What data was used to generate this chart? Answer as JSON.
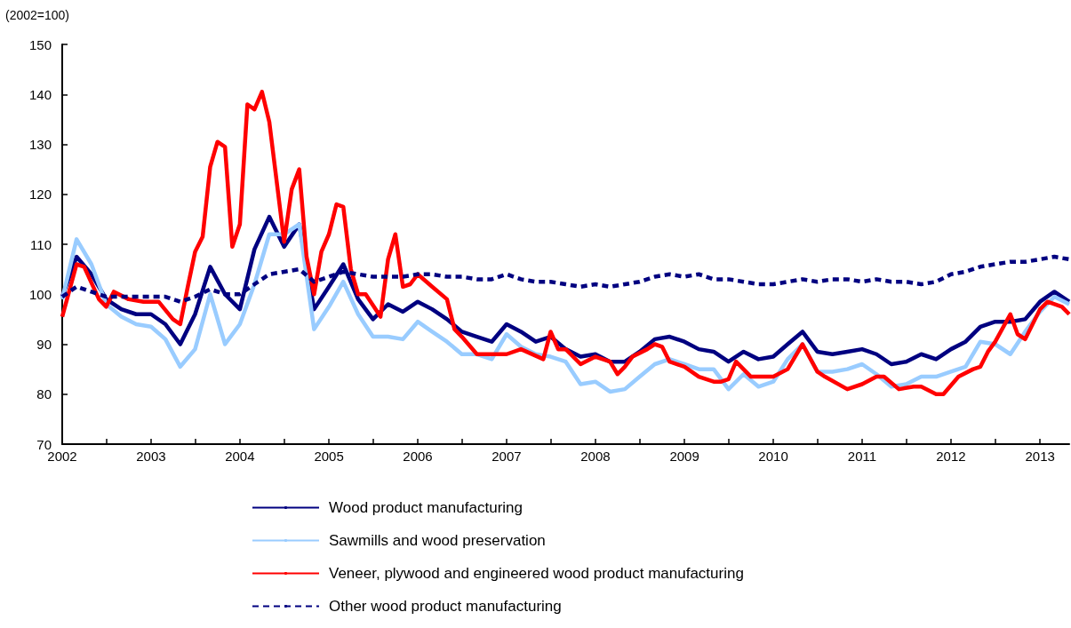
{
  "chart_data": {
    "type": "line",
    "ylabel": "(2002=100)",
    "x": [
      "2002-01",
      "2002-03",
      "2002-05",
      "2002-07",
      "2002-09",
      "2002-11",
      "2003-01",
      "2003-03",
      "2003-05",
      "2003-07",
      "2003-09",
      "2003-11",
      "2004-01",
      "2004-03",
      "2004-05",
      "2004-07",
      "2004-09",
      "2004-11",
      "2005-01",
      "2005-03",
      "2005-05",
      "2005-07",
      "2005-09",
      "2005-11",
      "2006-01",
      "2006-03",
      "2006-05",
      "2006-07",
      "2006-09",
      "2006-11",
      "2007-01",
      "2007-03",
      "2007-05",
      "2007-07",
      "2007-09",
      "2007-11",
      "2008-01",
      "2008-03",
      "2008-05",
      "2008-07",
      "2008-09",
      "2008-11",
      "2009-01",
      "2009-03",
      "2009-05",
      "2009-07",
      "2009-09",
      "2009-11",
      "2010-01",
      "2010-03",
      "2010-05",
      "2010-07",
      "2010-09",
      "2010-11",
      "2011-01",
      "2011-03",
      "2011-05",
      "2011-07",
      "2011-09",
      "2011-11",
      "2012-01",
      "2012-03",
      "2012-05",
      "2012-07",
      "2012-09",
      "2012-11",
      "2013-01",
      "2013-03",
      "2013-05"
    ],
    "series": [
      {
        "name": "Wood product manufacturing",
        "color": "#000080",
        "line_style": "solid",
        "values": [
          99.5,
          107.5,
          104,
          99,
          97,
          96,
          96,
          94,
          90,
          96,
          105.5,
          100,
          97,
          109,
          115.5,
          109.5,
          114,
          97,
          101.5,
          106,
          99,
          95,
          98,
          96.5,
          98.5,
          97,
          95,
          92.5,
          91.5,
          90.5,
          94,
          92.5,
          90.5,
          91.5,
          89,
          87.5,
          88,
          86.5,
          86.5,
          88.5,
          91,
          91.5,
          90.5,
          89,
          88.5,
          86.5,
          88.5,
          87,
          87.5,
          90,
          92.5,
          88.5,
          88,
          88.5,
          89,
          88,
          86,
          86.5,
          88,
          87,
          89,
          90.5,
          93.5,
          94.5,
          94.5,
          95,
          98.5,
          100.5,
          98.5
        ]
      },
      {
        "name": "Sawmills and wood preservation",
        "color": "#99ccff",
        "line_style": "solid",
        "values": [
          99,
          111,
          106,
          98,
          95.5,
          94,
          93.5,
          91,
          85.5,
          89,
          100,
          90,
          94,
          102,
          112,
          112,
          114,
          93,
          97.5,
          102.5,
          96,
          91.5,
          91.5,
          91,
          94.5,
          92.5,
          90.5,
          88,
          88,
          87,
          92,
          89.5,
          88,
          87.5,
          86.5,
          82,
          82.5,
          80.5,
          81,
          83.5,
          86,
          87,
          86,
          85,
          85,
          81,
          84,
          81.5,
          82.5,
          87,
          90,
          84.5,
          84.5,
          85,
          86,
          84,
          81.5,
          82,
          83.5,
          83.5,
          84.5,
          85.5,
          90.5,
          90,
          88,
          92.5,
          96.5,
          99.5,
          98
        ]
      },
      {
        "name": "Veneer, plywood and engineered wood product manufacturing",
        "color": "#ff0000",
        "line_style": "solid",
        "x": [
          "2002-01",
          "2002-03",
          "2002-04",
          "2002-06",
          "2002-07",
          "2002-08",
          "2002-10",
          "2002-12",
          "2003-02",
          "2003-04",
          "2003-05",
          "2003-06",
          "2003-07",
          "2003-08",
          "2003-09",
          "2003-10",
          "2003-11",
          "2003-12",
          "2004-01",
          "2004-02",
          "2004-03",
          "2004-04",
          "2004-05",
          "2004-07",
          "2004-08",
          "2004-09",
          "2004-10",
          "2004-11",
          "2004-12",
          "2005-01",
          "2005-02",
          "2005-03",
          "2005-04",
          "2005-05",
          "2005-06",
          "2005-08",
          "2005-09",
          "2005-10",
          "2005-11",
          "2005-12",
          "2006-01",
          "2006-03",
          "2006-05",
          "2006-06",
          "2006-07",
          "2006-09",
          "2007-01",
          "2007-03",
          "2007-06",
          "2007-07",
          "2007-08",
          "2007-09",
          "2007-11",
          "2008-01",
          "2008-03",
          "2008-04",
          "2008-05",
          "2008-06",
          "2008-08",
          "2008-09",
          "2008-10",
          "2008-11",
          "2009-01",
          "2009-03",
          "2009-05",
          "2009-06",
          "2009-07",
          "2009-08",
          "2009-10",
          "2010-01",
          "2010-03",
          "2010-05",
          "2010-07",
          "2010-08",
          "2010-11",
          "2011-01",
          "2011-03",
          "2011-04",
          "2011-06",
          "2011-08",
          "2011-09",
          "2011-11",
          "2011-12",
          "2012-02",
          "2012-04",
          "2012-05",
          "2012-06",
          "2012-07",
          "2012-09",
          "2012-10",
          "2012-11",
          "2013-01",
          "2013-02",
          "2013-04",
          "2013-05"
        ],
        "values": [
          95.5,
          106,
          105.5,
          99,
          97.5,
          100.5,
          99,
          98.5,
          98.5,
          95,
          94,
          101.5,
          108.5,
          111.5,
          125.5,
          130.5,
          129.5,
          109.5,
          114,
          138,
          137,
          140.5,
          134.5,
          110.5,
          121,
          125,
          107.5,
          100,
          108.5,
          112,
          118,
          117.5,
          105,
          100,
          100,
          95.5,
          107,
          112,
          101.5,
          102,
          104,
          101.5,
          99,
          93,
          91.5,
          88,
          88,
          89,
          87,
          92.5,
          89,
          89,
          86,
          87.5,
          86.5,
          84,
          85.5,
          87.5,
          89,
          90,
          89.5,
          86.5,
          85.5,
          83.5,
          82.5,
          82.5,
          83,
          86.5,
          83.5,
          83.5,
          85,
          90,
          84.5,
          83.5,
          81,
          82,
          83.5,
          83.5,
          81,
          81.5,
          81.5,
          80,
          80,
          83.5,
          85,
          85.5,
          88.5,
          90.5,
          96,
          92,
          91,
          97,
          98.5,
          97.5,
          96
        ]
      },
      {
        "name": "Other wood product manufacturing",
        "color": "#000080",
        "line_style": "dashed",
        "values": [
          99.5,
          101.5,
          100.5,
          99.5,
          99.5,
          99.5,
          99.5,
          99.5,
          98.5,
          99.5,
          101,
          100,
          100,
          102,
          104,
          104.5,
          105,
          102.5,
          103.5,
          104.5,
          104,
          103.5,
          103.5,
          103.5,
          104,
          104,
          103.5,
          103.5,
          103,
          103,
          104,
          103,
          102.5,
          102.5,
          102,
          101.5,
          102,
          101.5,
          102,
          102.5,
          103.5,
          104,
          103.5,
          104,
          103,
          103,
          102.5,
          102,
          102,
          102.5,
          103,
          102.5,
          103,
          103,
          102.5,
          103,
          102.5,
          102.5,
          102,
          102.5,
          104,
          104.5,
          105.5,
          106,
          106.5,
          106.5,
          107,
          107.5,
          107
        ]
      }
    ],
    "xlim": [
      "2002-01",
      "2013-05"
    ],
    "xticks": [
      "2002",
      {
        "value": "2002-07",
        "label": null
      },
      "2003",
      {
        "value": "2003-07",
        "label": null
      },
      "2004",
      {
        "value": "2004-07",
        "label": null
      },
      "2005",
      {
        "value": "2005-07",
        "label": null
      },
      "2006",
      {
        "value": "2006-07",
        "label": null
      },
      "2007",
      {
        "value": "2007-07",
        "label": null
      },
      "2008",
      {
        "value": "2008-07",
        "label": null
      },
      "2009",
      {
        "value": "2009-07",
        "label": null
      },
      "2010",
      {
        "value": "2010-07",
        "label": null
      },
      "2011",
      {
        "value": "2011-07",
        "label": null
      },
      "2012",
      {
        "value": "2012-07",
        "label": null
      },
      "2013"
    ],
    "ylim": [
      70,
      150
    ],
    "yticks": [
      70,
      80,
      90,
      100,
      110,
      120,
      130,
      140,
      150
    ],
    "grid": false,
    "legend": "bottom",
    "marker": "none"
  }
}
